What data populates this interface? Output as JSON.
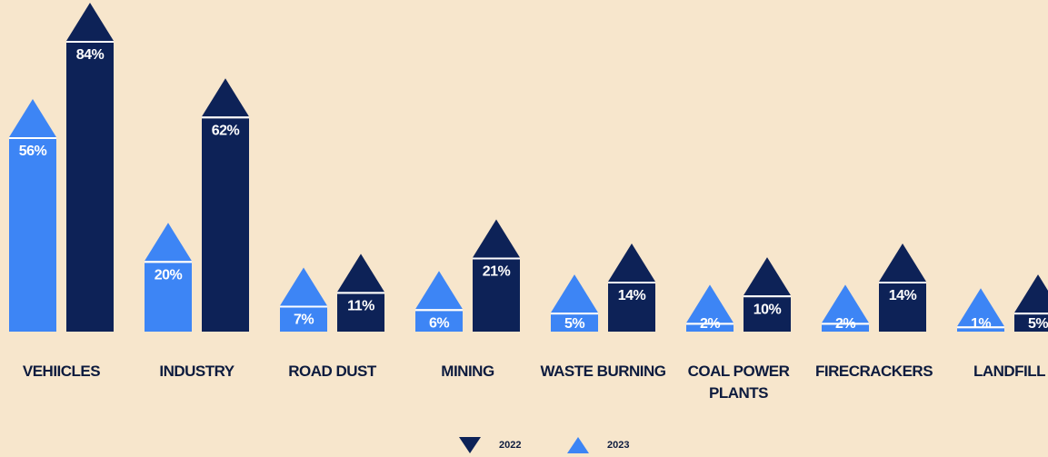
{
  "chart_data": {
    "type": "bar",
    "categories": [
      "VEHIICLES",
      "INDUSTRY",
      "ROAD DUST",
      "MINING",
      "WASTE BURNING",
      "COAL POWER PLANTS",
      "FIRECRACKERS",
      "LANDFILL"
    ],
    "series": [
      {
        "name": "2023",
        "color": "#3d85f5",
        "values": [
          56,
          20,
          7,
          6,
          5,
          2,
          2,
          1
        ],
        "value_labels": [
          "56%",
          "20%",
          "7%",
          "6%",
          "5%",
          "2%",
          "2%",
          "1%"
        ]
      },
      {
        "name": "2022",
        "color": "#0d2257",
        "values": [
          84,
          62,
          11,
          21,
          14,
          10,
          14,
          5
        ],
        "value_labels": [
          "84%",
          "62%",
          "11%",
          "21%",
          "14%",
          "10%",
          "14%",
          "5%"
        ]
      }
    ]
  }
}
